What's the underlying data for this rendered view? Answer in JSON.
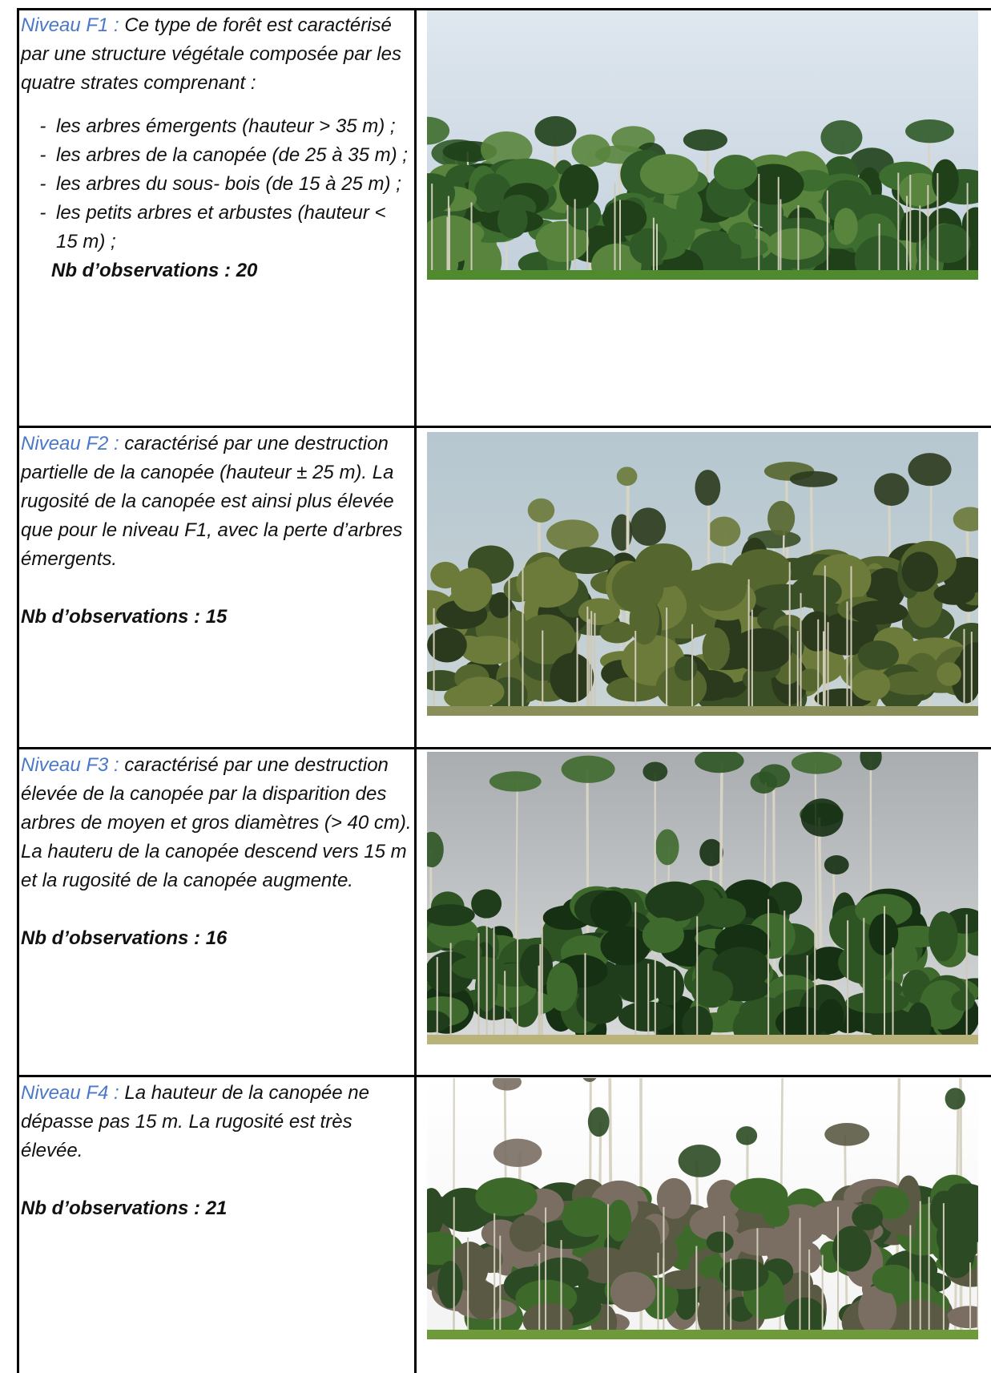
{
  "rows": [
    {
      "level": "Niveau F1 :",
      "text": "Ce type de forêt est caractérisé par une structure végétale composée par les quatre strates comprenant :",
      "items": [
        "les arbres émergents (hauteur > 35 m) ;",
        "les arbres de la canopée (de 25 à 35 m) ;",
        "les arbres du sous- bois (de 15 à 25 m) ;",
        "les petits arbres et arbustes (hauteur < 15 m) ;"
      ],
      "observations": "Nb d’observations : 20"
    },
    {
      "level": "Niveau F2 :",
      "text": "caractérisé par une destruction partielle de la canopée (hauteur ± 25 m). La rugosité de la canopée est ainsi plus élevée que pour le niveau F1, avec la perte d’arbres émergents.",
      "observations": "Nb d’observations : 15"
    },
    {
      "level": "Niveau F3 :",
      "text": "caractérisé par une destruction élevée de la canopée par la disparition des arbres de moyen et gros diamètres (> 40 cm). La hauteru de la canopée descend vers 15 m et la rugosité de la canopée augmente.",
      "observations": "Nb d’observations : 16"
    },
    {
      "level": "Niveau F4 :",
      "text": "La hauteur de la canopée ne dépasse pas 15 m. La rugosité est très élevée.",
      "observations": "Nb d’observations : 21"
    }
  ]
}
